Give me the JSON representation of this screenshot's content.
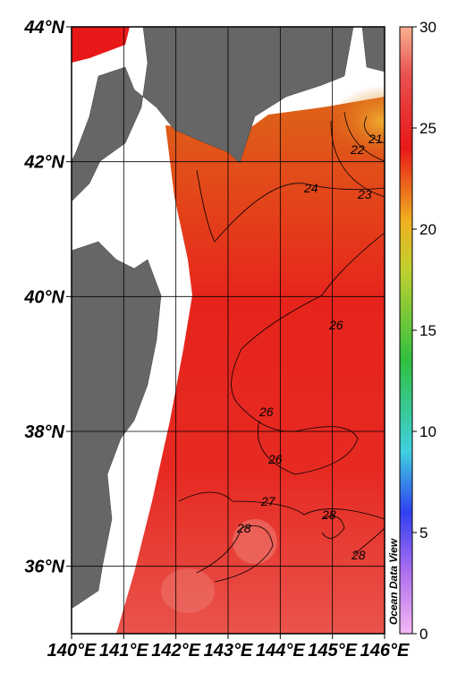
{
  "map": {
    "lon_lim": [
      140,
      146
    ],
    "lat_lim": [
      35,
      44
    ],
    "lon_ticks": [
      {
        "value": 140,
        "label": "140°E"
      },
      {
        "value": 141,
        "label": "141°E"
      },
      {
        "value": 142,
        "label": "142°E"
      },
      {
        "value": 143,
        "label": "143°E"
      },
      {
        "value": 144,
        "label": "144°E"
      },
      {
        "value": 145,
        "label": "145°E"
      },
      {
        "value": 146,
        "label": "146°E"
      }
    ],
    "lat_ticks": [
      {
        "value": 36,
        "label": "36°N"
      },
      {
        "value": 38,
        "label": "38°N"
      },
      {
        "value": 40,
        "label": "40°N"
      },
      {
        "value": 42,
        "label": "42°N"
      },
      {
        "value": 44,
        "label": "44°N"
      }
    ],
    "colorbar": {
      "lim": [
        0,
        30
      ],
      "ticks": [
        0,
        5,
        10,
        15,
        20,
        25,
        30
      ]
    },
    "contour_labels": [
      "21",
      "22",
      "23",
      "24",
      "26",
      "26",
      "26",
      "27",
      "28",
      "28",
      "28"
    ],
    "watermark": "Ocean Data View"
  }
}
